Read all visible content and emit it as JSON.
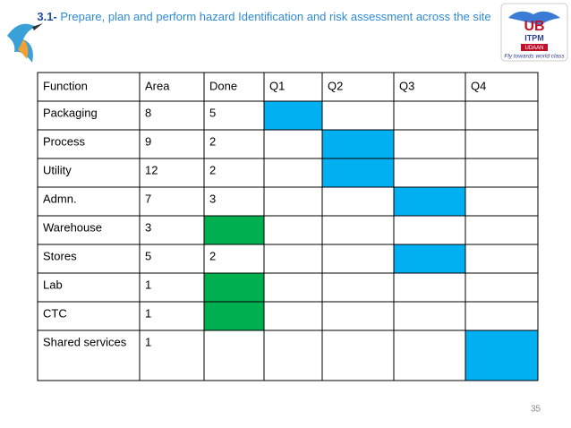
{
  "header": {
    "number": "3.1-",
    "title": "Prepare, plan and perform hazard Identification and risk assessment across the site"
  },
  "logo": {
    "letters": "UB",
    "name": "ITPM",
    "banner": "UDAAN",
    "tagline": "Fly towards world class"
  },
  "table": {
    "columns": [
      "Function",
      "Area",
      "Done",
      "Q1",
      "Q2",
      "Q3",
      "Q4"
    ],
    "rows": [
      {
        "cells": [
          "Packaging",
          8,
          5
        ],
        "highlight": "Q1",
        "color": "#00b0f0"
      },
      {
        "cells": [
          "Process",
          9,
          2
        ],
        "highlight": "Q2",
        "color": "#00b0f0"
      },
      {
        "cells": [
          "Utility",
          12,
          2
        ],
        "highlight": "Q2",
        "color": "#00b0f0"
      },
      {
        "cells": [
          "Admn.",
          7,
          3
        ],
        "highlight": "Q3",
        "color": "#00b0f0"
      },
      {
        "cells": [
          "Warehouse",
          3
        ],
        "highlight": "Done",
        "color": "#00b050"
      },
      {
        "cells": [
          "Stores",
          5,
          2
        ],
        "highlight": "Q3",
        "color": "#00b0f0"
      },
      {
        "cells": [
          "Lab",
          1
        ],
        "highlight": "Done",
        "color": "#00b050"
      },
      {
        "cells": [
          "CTC",
          1
        ],
        "highlight": "Done",
        "color": "#00b050"
      },
      {
        "cells": [
          "Shared services",
          1
        ],
        "highlight": "Q4",
        "color": "#00b0f0"
      }
    ]
  },
  "page_number": "35"
}
